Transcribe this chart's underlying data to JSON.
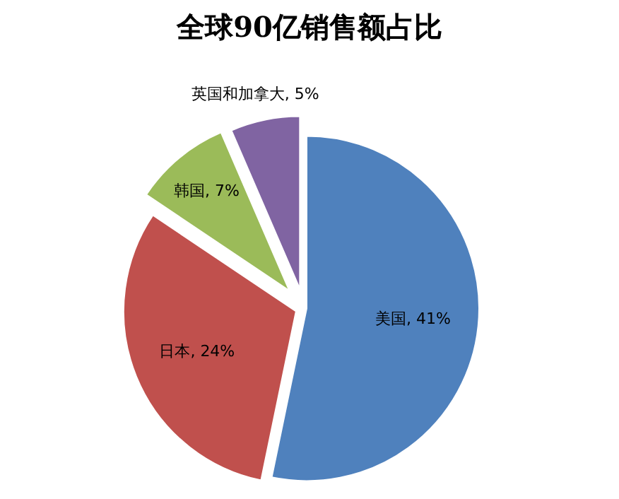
{
  "chart_data": {
    "type": "pie",
    "title": "全球90亿销售额占比",
    "categories": [
      "美国",
      "日本",
      "韩国",
      "英国和加拿大"
    ],
    "values": [
      41,
      24,
      7,
      5
    ],
    "value_labels": [
      "41%",
      "24%",
      "7%",
      "5%"
    ],
    "colors": [
      "#4f81bd",
      "#c0504d",
      "#9bbb59",
      "#8064a2"
    ]
  }
}
